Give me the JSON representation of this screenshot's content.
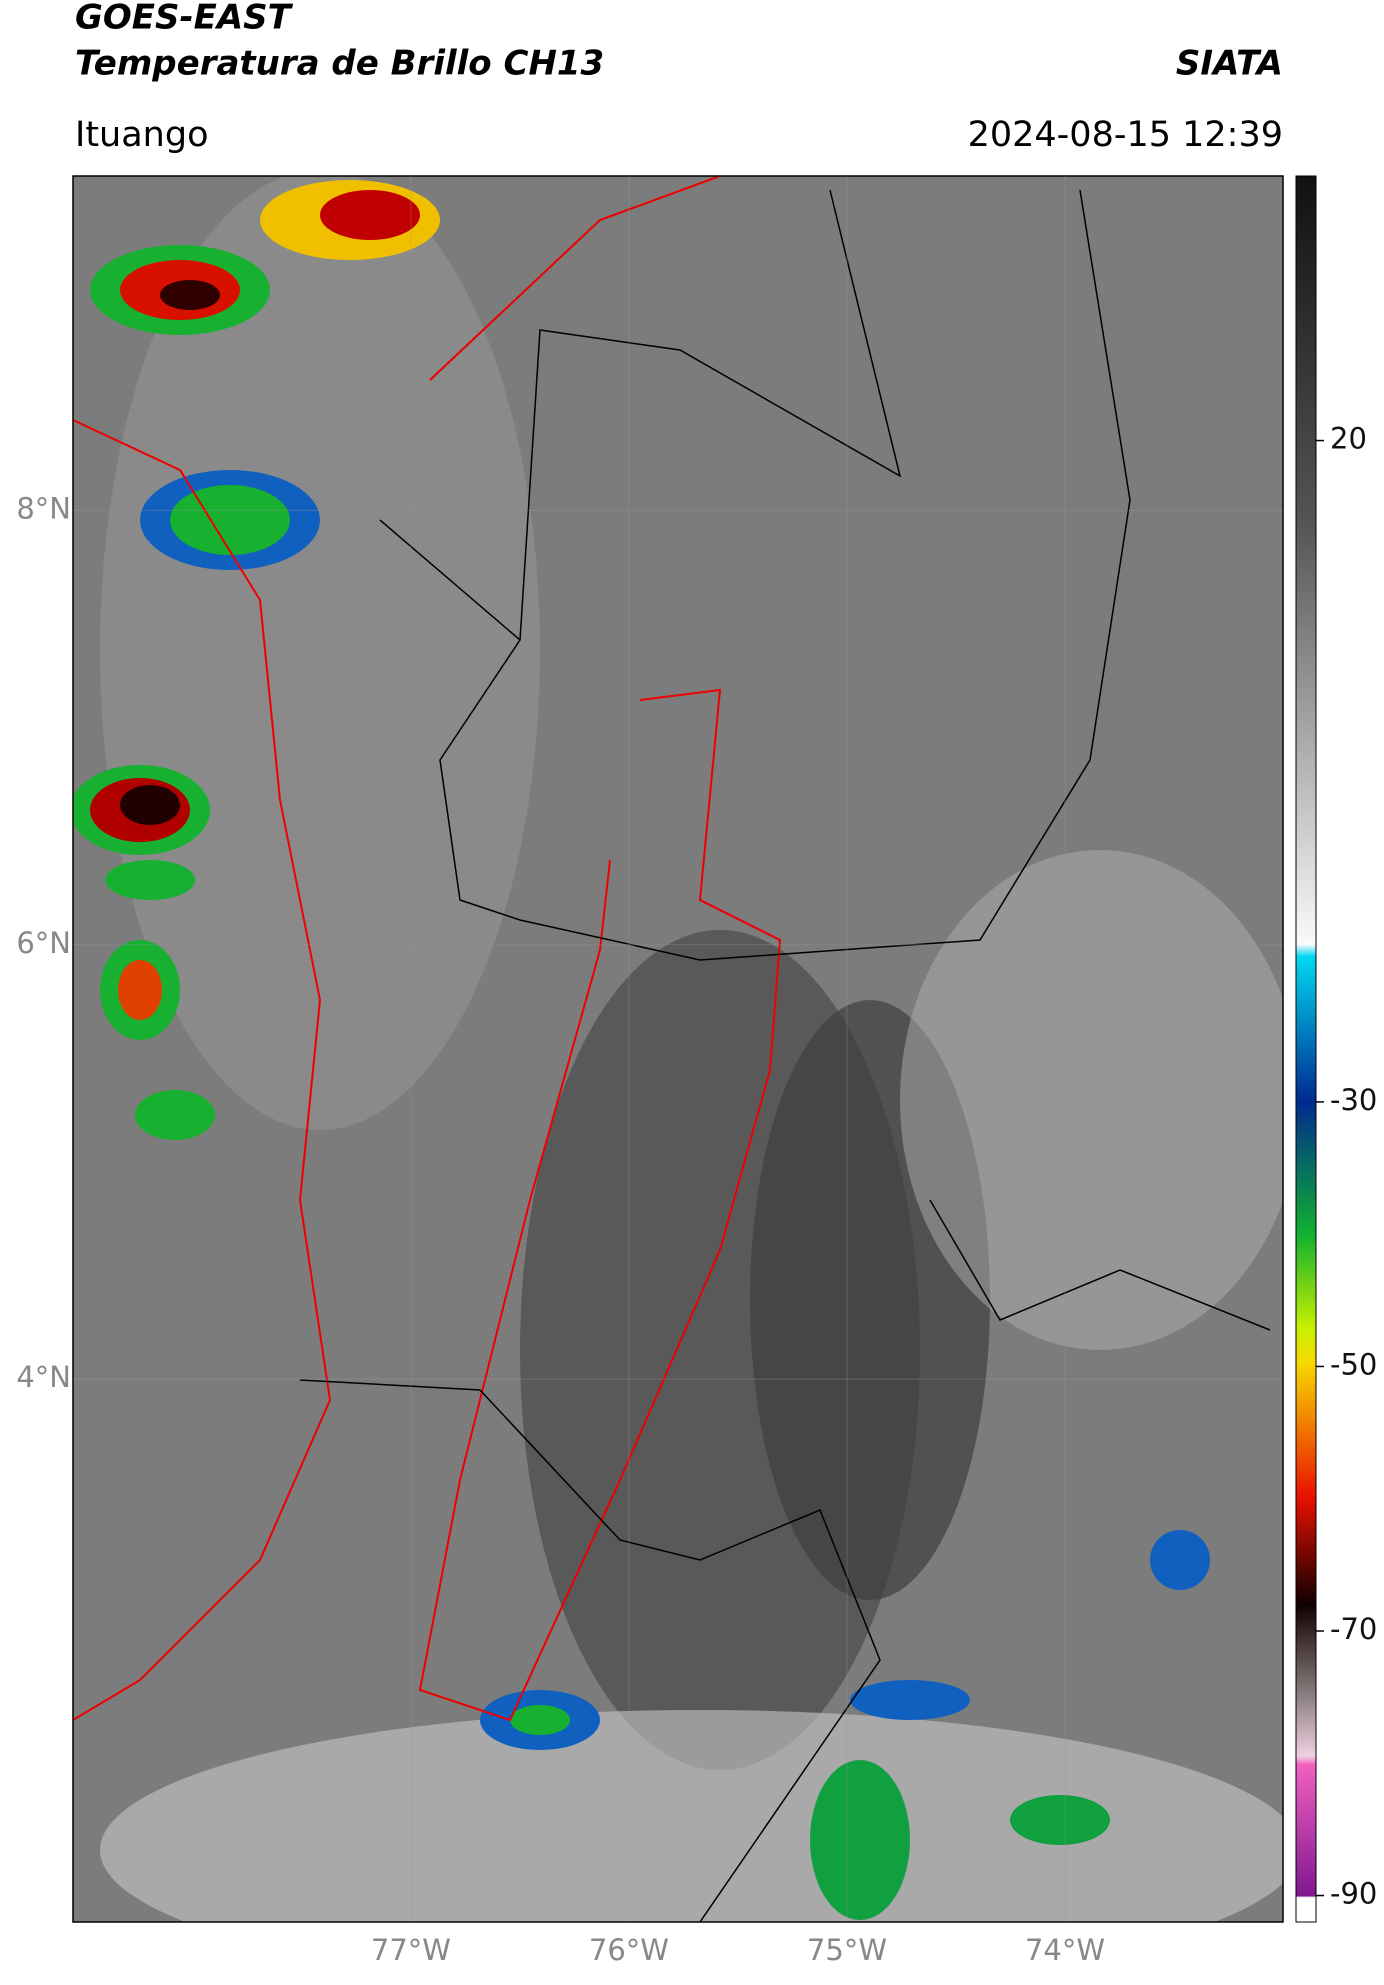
{
  "header": {
    "title": "GOES-EAST",
    "subtitle": "Temperatura de Brillo CH13",
    "source": "SIATA",
    "location": "Ituango",
    "datetime": "2024-08-15 12:39"
  },
  "map": {
    "latlim": [
      1.5,
      9.54
    ],
    "lonlim": [
      -78.55,
      -73
    ],
    "lat_ticks": [
      {
        "value": 8,
        "label": "8°N"
      },
      {
        "value": 6,
        "label": "6°N"
      },
      {
        "value": 4,
        "label": "4°N"
      }
    ],
    "lon_ticks": [
      {
        "value": -77,
        "label": "77°W"
      },
      {
        "value": -76,
        "label": "76°W"
      },
      {
        "value": -75,
        "label": "75°W"
      },
      {
        "value": -74,
        "label": "74°W"
      }
    ]
  },
  "colorbar": {
    "lim": [
      -92,
      40
    ],
    "ticks": [
      20,
      -30,
      -50,
      -70,
      -90
    ]
  }
}
